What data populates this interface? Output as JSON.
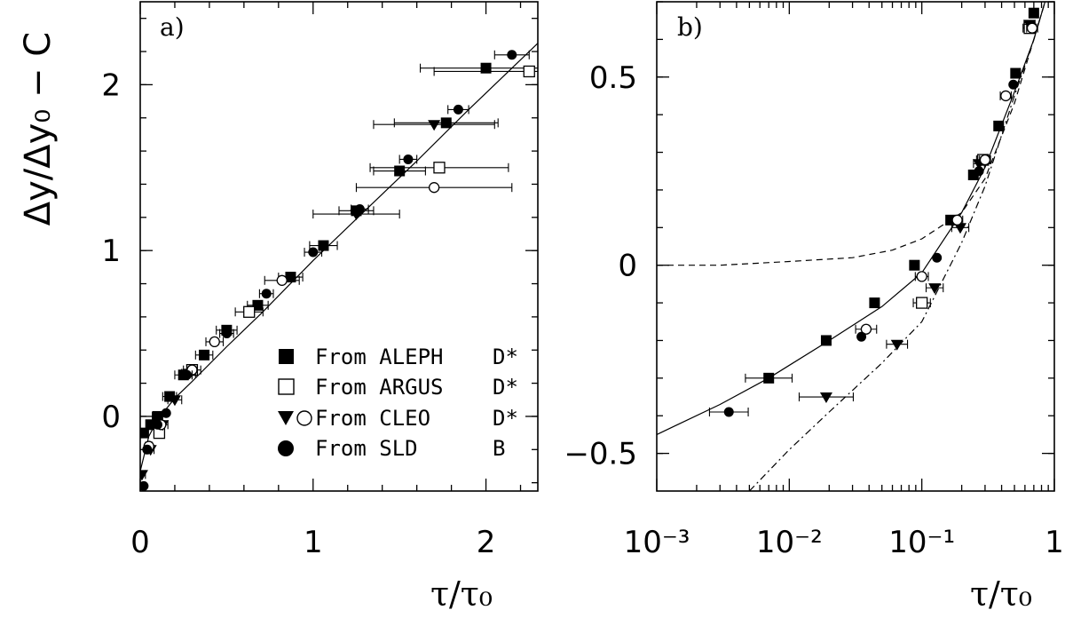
{
  "figure": {
    "ylabel": "Δy/Δy₀ − C",
    "legend": [
      {
        "symbol": "filled-square",
        "label": "From ALEPH",
        "particle": "D*"
      },
      {
        "symbol": "open-square",
        "label": "From ARGUS",
        "particle": "D*"
      },
      {
        "symbol": "down-triangle+open-circle",
        "label": "From CLEO",
        "particle": "D*"
      },
      {
        "symbol": "filled-circle",
        "label": "From SLD",
        "particle": "B"
      }
    ]
  },
  "chart_data": [
    {
      "type": "scatter",
      "panel_label": "a)",
      "xlabel": "τ/τ₀",
      "ylabel": "Δy/Δy₀ − C",
      "xlim": [
        0,
        2.3
      ],
      "ylim": [
        -0.45,
        2.5
      ],
      "x_ticks": [
        "0",
        "1",
        "2"
      ],
      "y_ticks": [
        "0",
        "1",
        "2"
      ],
      "grid": false,
      "legend_placement": "bottom-right",
      "curves": [
        {
          "style": "solid",
          "x": [
            0,
            0.05,
            0.1,
            0.2,
            0.3,
            0.5,
            0.7,
            1.0,
            1.3,
            1.6,
            1.9,
            2.2,
            2.3
          ],
          "y": [
            -0.33,
            -0.12,
            -0.02,
            0.11,
            0.21,
            0.42,
            0.62,
            0.94,
            1.24,
            1.54,
            1.85,
            2.15,
            2.25
          ]
        }
      ],
      "series": [
        {
          "name": "From ALEPH D*",
          "marker": "filled-square",
          "x": [
            0.02,
            0.06,
            0.1,
            0.17,
            0.25,
            0.37,
            0.5,
            0.68,
            0.87,
            1.06,
            1.25,
            1.5,
            1.77,
            2.0
          ],
          "y": [
            -0.1,
            -0.05,
            0.0,
            0.12,
            0.25,
            0.37,
            0.52,
            0.67,
            0.84,
            1.03,
            1.24,
            1.48,
            1.77,
            2.1
          ],
          "xerr": [
            0.02,
            0.02,
            0.03,
            0.04,
            0.05,
            0.05,
            0.06,
            0.06,
            0.07,
            0.08,
            0.1,
            0.15,
            0.3,
            0.38
          ]
        },
        {
          "name": "From ARGUS D*",
          "marker": "open-square",
          "x": [
            0.11,
            0.3,
            0.63,
            1.73,
            2.25
          ],
          "y": [
            -0.1,
            0.28,
            0.63,
            1.5,
            2.08
          ],
          "xerr": [
            0.03,
            0.05,
            0.08,
            0.4,
            0.55
          ]
        },
        {
          "name": "From CLEO D* (triangles)",
          "marker": "down-triangle",
          "x": [
            0.01,
            0.06,
            0.13,
            0.2,
            0.28,
            1.25,
            1.7
          ],
          "y": [
            -0.35,
            -0.2,
            -0.05,
            0.1,
            0.26,
            1.22,
            1.76
          ],
          "xerr": [
            0.02,
            0.02,
            0.03,
            0.04,
            0.04,
            0.25,
            0.35
          ]
        },
        {
          "name": "From CLEO D* (circles)",
          "marker": "open-circle",
          "x": [
            0.05,
            0.12,
            0.3,
            0.43,
            0.82,
            1.7
          ],
          "y": [
            -0.18,
            -0.05,
            0.28,
            0.45,
            0.82,
            1.38
          ],
          "xerr": [
            0.02,
            0.02,
            0.03,
            0.05,
            0.1,
            0.45
          ]
        },
        {
          "name": "From SLD B",
          "marker": "filled-circle",
          "x": [
            0.02,
            0.04,
            0.1,
            0.15,
            0.27,
            0.5,
            0.73,
            1.0,
            1.27,
            1.55,
            1.84,
            2.15
          ],
          "y": [
            -0.42,
            -0.2,
            -0.05,
            0.02,
            0.25,
            0.5,
            0.74,
            0.99,
            1.25,
            1.55,
            1.85,
            2.18
          ],
          "xerr": [
            0.0,
            0.0,
            0.0,
            0.0,
            0.03,
            0.04,
            0.04,
            0.05,
            0.05,
            0.05,
            0.06,
            0.1
          ]
        }
      ]
    },
    {
      "type": "scatter",
      "panel_label": "b)",
      "xlabel": "τ/τ₀",
      "xscale": "log",
      "xlim": [
        0.001,
        1
      ],
      "ylim": [
        -0.6,
        0.7
      ],
      "x_ticks": [
        "10⁻³",
        "10⁻²",
        "10⁻¹",
        "1"
      ],
      "y_ticks": [
        "−0.5",
        "0",
        "0.5"
      ],
      "grid": false,
      "curves": [
        {
          "style": "solid",
          "x": [
            0.001,
            0.003,
            0.007,
            0.02,
            0.05,
            0.1,
            0.2,
            0.3,
            0.5,
            0.7,
            0.85
          ],
          "y": [
            -0.45,
            -0.37,
            -0.3,
            -0.2,
            -0.11,
            -0.02,
            0.14,
            0.26,
            0.46,
            0.6,
            0.7
          ]
        },
        {
          "style": "dashed",
          "x": [
            0.001,
            0.003,
            0.01,
            0.03,
            0.06,
            0.1,
            0.2,
            0.3,
            0.5,
            0.7,
            0.85
          ],
          "y": [
            0.0,
            0.0,
            0.01,
            0.02,
            0.04,
            0.07,
            0.14,
            0.23,
            0.43,
            0.6,
            0.7
          ]
        },
        {
          "style": "dash-dot",
          "x": [
            0.005,
            0.01,
            0.02,
            0.05,
            0.1,
            0.2,
            0.3,
            0.5,
            0.7,
            0.85
          ],
          "y": [
            -0.6,
            -0.49,
            -0.39,
            -0.26,
            -0.15,
            0.06,
            0.21,
            0.45,
            0.6,
            0.7
          ]
        }
      ],
      "series": [
        {
          "name": "From ALEPH D*",
          "marker": "filled-square",
          "x": [
            0.007,
            0.019,
            0.044,
            0.088,
            0.165,
            0.245,
            0.38,
            0.51,
            0.7
          ],
          "y": [
            -0.3,
            -0.2,
            -0.1,
            0.0,
            0.12,
            0.24,
            0.37,
            0.51,
            0.67
          ],
          "xerr": [
            0.25,
            0.0,
            0.0,
            0.0,
            0.0,
            0.0,
            0.0,
            0.0,
            0.0
          ]
        },
        {
          "name": "From ARGUS D*",
          "marker": "open-square",
          "x": [
            0.1,
            0.29,
            0.65
          ],
          "y": [
            -0.1,
            0.28,
            0.63
          ],
          "xerr": [
            0.08,
            0.06,
            0.06
          ]
        },
        {
          "name": "From CLEO D* (triangles)",
          "marker": "down-triangle",
          "x": [
            0.019,
            0.065,
            0.125,
            0.195,
            0.27,
            0.65
          ],
          "y": [
            -0.35,
            -0.21,
            -0.06,
            0.1,
            0.27,
            0.64
          ],
          "xerr": [
            0.3,
            0.1,
            0.08,
            0.08,
            0.05,
            0.05
          ]
        },
        {
          "name": "From CLEO D* (circles)",
          "marker": "open-circle",
          "x": [
            0.038,
            0.1,
            0.185,
            0.3,
            0.43,
            0.68
          ],
          "y": [
            -0.17,
            -0.03,
            0.12,
            0.28,
            0.45,
            0.63
          ],
          "xerr": [
            0.1,
            0.06,
            0.05,
            0.05,
            0.05,
            0.05
          ]
        },
        {
          "name": "From SLD B",
          "marker": "filled-circle",
          "x": [
            0.0035,
            0.035,
            0.13,
            0.27,
            0.49
          ],
          "y": [
            -0.39,
            -0.19,
            0.02,
            0.25,
            0.48
          ],
          "xerr": [
            0.2,
            0.0,
            0.0,
            0.0,
            0.0
          ]
        }
      ]
    }
  ]
}
